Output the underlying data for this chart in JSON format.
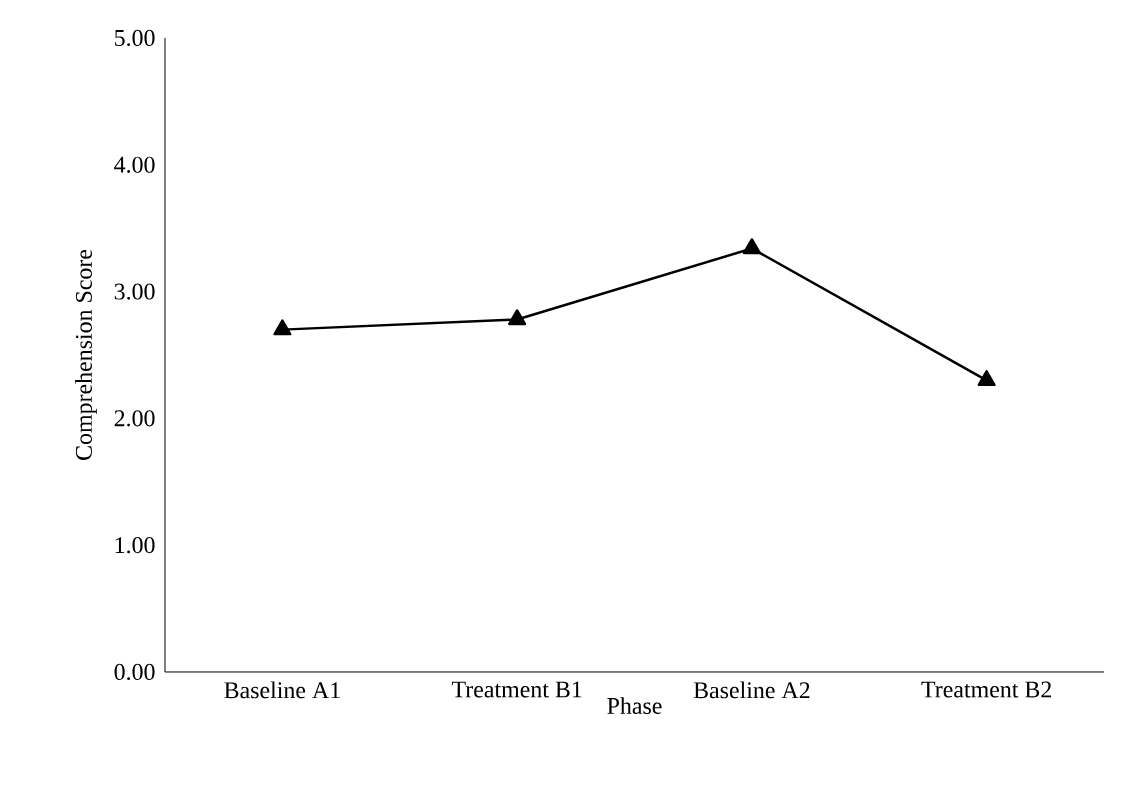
{
  "chart_data": {
    "type": "line",
    "xlabel": "Phase",
    "ylabel": "Comprehension Score",
    "categories": [
      "Baseline A1",
      "Treatment B1",
      "Baseline A2",
      "Treatment B2"
    ],
    "values": [
      2.7,
      2.78,
      3.34,
      2.3
    ],
    "color": "#000000",
    "marker": "triangle",
    "line_style": "solid",
    "ylim": [
      0,
      5
    ],
    "yticks": [
      {
        "value": 0,
        "label": "0.00"
      },
      {
        "value": 1,
        "label": "1.00"
      },
      {
        "value": 2,
        "label": "2.00"
      },
      {
        "value": 3,
        "label": "3.00"
      },
      {
        "value": 4,
        "label": "4.00"
      },
      {
        "value": 5,
        "label": "5.00"
      }
    ],
    "grid": false
  }
}
